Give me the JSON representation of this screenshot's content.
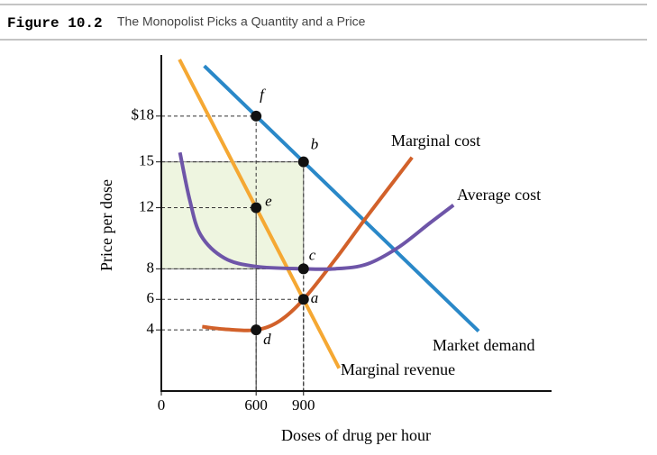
{
  "header": {
    "figure": "Figure 10.2",
    "title": "The Monopolist Picks a Quantity and a Price"
  },
  "chart_data": {
    "type": "line",
    "xlabel": "Doses of drug per hour",
    "ylabel": "Price per dose",
    "xlim": [
      0,
      2470
    ],
    "ylim": [
      0,
      22
    ],
    "xticks": [
      0,
      600,
      900
    ],
    "yticks": [
      {
        "value": 18,
        "label": "$18"
      },
      15,
      12,
      8,
      6,
      4
    ],
    "series": [
      {
        "name": "Market demand",
        "color": "#2a88c8",
        "x": [
          280,
          2000
        ],
        "values": [
          21.2,
          4
        ]
      },
      {
        "name": "Marginal revenue",
        "color": "#f5a833",
        "x": [
          120,
          1120
        ],
        "values": [
          21.6,
          1.6
        ]
      },
      {
        "name": "Marginal cost",
        "color": "#d2612a",
        "x": [
          270,
          400,
          600,
          750,
          900,
          1100,
          1300,
          1580
        ],
        "values": [
          4.2,
          4.05,
          4,
          4.6,
          6,
          8.6,
          11.4,
          15.2
        ]
      },
      {
        "name": "Average cost",
        "color": "#6e55a8",
        "x": [
          120,
          180,
          250,
          400,
          600,
          900,
          1100,
          1300,
          1500,
          1700,
          1840
        ],
        "values": [
          15.5,
          12.5,
          10.2,
          8.7,
          8.15,
          8,
          8,
          8.3,
          9.4,
          11,
          12.1
        ]
      }
    ],
    "points": [
      {
        "label": "f",
        "x": 600,
        "y": 18
      },
      {
        "label": "b",
        "x": 900,
        "y": 15
      },
      {
        "label": "e",
        "x": 600,
        "y": 12
      },
      {
        "label": "c",
        "x": 900,
        "y": 8
      },
      {
        "label": "a",
        "x": 900,
        "y": 6
      },
      {
        "label": "d",
        "x": 600,
        "y": 4
      }
    ]
  }
}
